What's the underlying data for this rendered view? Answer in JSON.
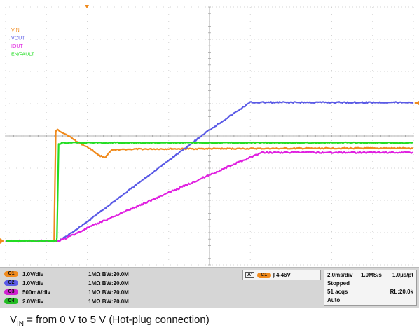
{
  "chart_data": {
    "type": "line",
    "x_divisions": 10,
    "y_divisions": 8,
    "grid": true,
    "legend_position": "top-left",
    "legend": [
      "VIN",
      "VOUT",
      "IOUT",
      "EN/FAULT"
    ],
    "series": [
      {
        "name": "VIN",
        "color": "#f08a1c",
        "x": [
          0.0,
          1.19,
          1.2,
          1.23,
          1.27,
          1.5,
          1.8,
          2.1,
          2.3,
          2.45,
          2.6,
          3.0,
          4.0,
          6.0,
          8.0,
          10.0
        ],
        "y": [
          0.0,
          0.0,
          0.9,
          3.4,
          3.45,
          3.3,
          3.05,
          2.85,
          2.65,
          2.6,
          2.82,
          2.85,
          2.86,
          2.87,
          2.88,
          2.88
        ]
      },
      {
        "name": "VOUT",
        "color": "#5a5ae6",
        "x": [
          0.0,
          1.3,
          1.5,
          2.0,
          3.0,
          4.0,
          5.0,
          6.0,
          6.3,
          7.0,
          8.0,
          10.0
        ],
        "y": [
          0.0,
          0.0,
          0.15,
          0.6,
          1.55,
          2.5,
          3.45,
          4.3,
          4.3,
          4.3,
          4.3,
          4.3
        ]
      },
      {
        "name": "IOUT",
        "color": "#e020e0",
        "x": [
          0.0,
          1.3,
          1.5,
          2.0,
          3.0,
          4.0,
          5.0,
          6.0,
          6.3,
          7.0,
          8.0,
          10.0
        ],
        "y": [
          0.0,
          0.0,
          0.1,
          0.4,
          0.95,
          1.5,
          2.05,
          2.6,
          2.75,
          2.75,
          2.75,
          2.75
        ]
      },
      {
        "name": "EN/FAULT",
        "color": "#22dd22",
        "x": [
          0.0,
          1.25,
          1.26,
          1.3,
          1.4,
          2.0,
          5.0,
          10.0
        ],
        "y": [
          0.0,
          0.0,
          0.1,
          3.0,
          3.05,
          3.05,
          3.05,
          3.05
        ]
      }
    ]
  },
  "channels": [
    {
      "label": "C1",
      "scale": "1.0V/div",
      "impedance": "1MΩ",
      "bw": "BW:20.0M",
      "color": "#f08a1c"
    },
    {
      "label": "C2",
      "scale": "1.0V/div",
      "impedance": "1MΩ",
      "bw": "BW:20.0M",
      "color": "#5a5ae6"
    },
    {
      "label": "C3",
      "scale": "500mA/div",
      "impedance": "1MΩ",
      "bw": "BW:20.0M",
      "color": "#d020d0"
    },
    {
      "label": "C4",
      "scale": "2.0V/div",
      "impedance": "1MΩ",
      "bw": "BW:20.0M",
      "color": "#22bb22"
    }
  ],
  "trigger": {
    "label": "A'",
    "channel": "C1",
    "slope": "∫",
    "level": "4.46V"
  },
  "acquisition": {
    "timebase": "2.0ms/div",
    "sample_rate": "1.0MS/s",
    "resolution": "1.0µs/pt",
    "state": "Stopped",
    "acqs": "51 acqs",
    "record_length": "RL:20.0k",
    "mode": "Auto"
  },
  "caption": {
    "prefix": "V",
    "sub": "IN",
    "text": " = from 0 V to 5 V (Hot-plug connection)"
  }
}
